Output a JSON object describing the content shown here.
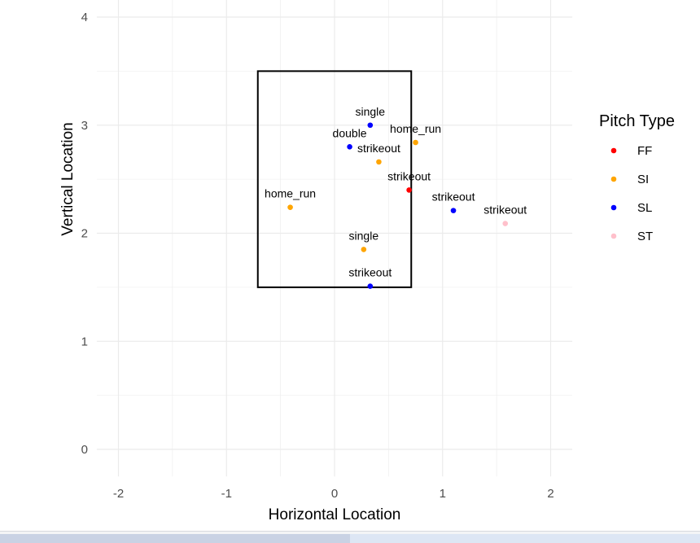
{
  "chart_data": {
    "type": "scatter",
    "xlabel": "Horizontal Location",
    "ylabel": "Vertical Location",
    "xlim": [
      -2.2,
      2.2
    ],
    "ylim": [
      -0.25,
      4.16
    ],
    "xticks": [
      -2,
      -1,
      0,
      1,
      2
    ],
    "yticks": [
      0,
      1,
      2,
      3,
      4
    ],
    "grid": true,
    "strike_zone": {
      "x": [
        -0.71,
        0.71
      ],
      "y": [
        1.5,
        3.5
      ]
    },
    "legend": {
      "title": "Pitch Type",
      "placement": "right",
      "entries": [
        {
          "name": "FF",
          "color": "#ff0000"
        },
        {
          "name": "SI",
          "color": "#ffa500"
        },
        {
          "name": "SL",
          "color": "#0000ff"
        },
        {
          "name": "ST",
          "color": "#ffc0cb"
        }
      ]
    },
    "points": [
      {
        "x": 0.33,
        "y": 3.0,
        "type": "SL",
        "label": "single"
      },
      {
        "x": 0.14,
        "y": 2.8,
        "type": "SL",
        "label": "double"
      },
      {
        "x": 0.75,
        "y": 2.84,
        "type": "SI",
        "label": "home_run"
      },
      {
        "x": 0.41,
        "y": 2.66,
        "type": "SI",
        "label": "strikeout"
      },
      {
        "x": 0.69,
        "y": 2.4,
        "type": "FF",
        "label": "strikeout"
      },
      {
        "x": 1.1,
        "y": 2.21,
        "type": "SL",
        "label": "strikeout"
      },
      {
        "x": 1.58,
        "y": 2.09,
        "type": "ST",
        "label": "strikeout"
      },
      {
        "x": -0.41,
        "y": 2.24,
        "type": "SI",
        "label": "home_run"
      },
      {
        "x": 0.27,
        "y": 1.85,
        "type": "SI",
        "label": "single"
      },
      {
        "x": 0.33,
        "y": 1.51,
        "type": "SL",
        "label": "strikeout"
      }
    ]
  }
}
